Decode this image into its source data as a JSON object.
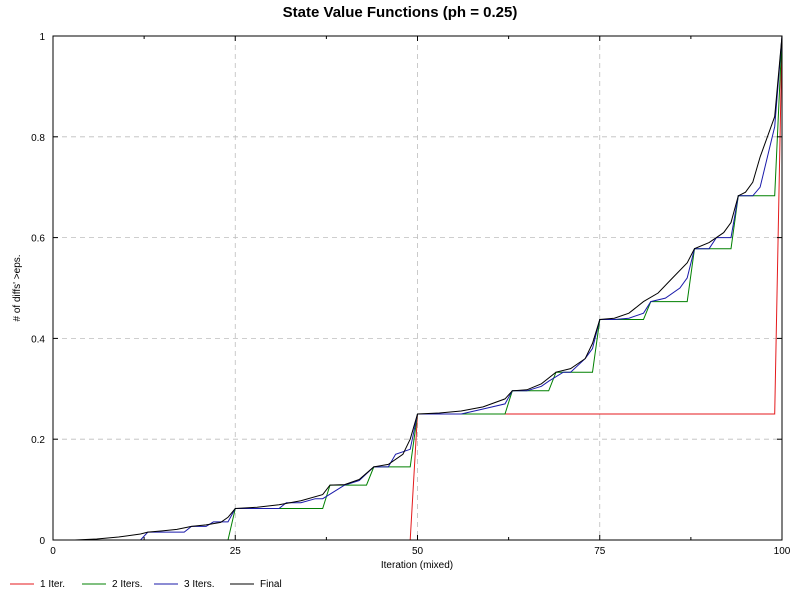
{
  "chart_data": {
    "type": "line",
    "title": "State Value Functions (ph = 0.25)",
    "xlabel": "Iteration (mixed)",
    "ylabel": "# of diffs' >eps.",
    "xlim": [
      0,
      100
    ],
    "ylim": [
      0,
      1
    ],
    "xticks": [
      0,
      25,
      50,
      75,
      100
    ],
    "yticks": [
      0,
      0.2,
      0.4,
      0.6,
      0.8,
      1
    ],
    "ytick_labels": [
      "0",
      "0.2",
      "0.4",
      "0.6",
      "0.8",
      "1"
    ],
    "grid": true,
    "legend_position": "bottom",
    "colors": {
      "s1": "#e41a1c",
      "s2": "#008000",
      "s3": "#1a1aaa",
      "s4": "#000000"
    },
    "series": [
      {
        "name": "1 Iter.",
        "color": "#e41a1c",
        "x": [
          49,
          50,
          99,
          100
        ],
        "y": [
          0,
          0.25,
          0.25,
          1
        ]
      },
      {
        "name": "2 Iters.",
        "color": "#008000",
        "x": [
          24,
          25,
          37,
          38,
          43,
          44,
          49,
          50,
          62,
          63,
          68,
          69,
          74,
          75,
          81,
          82,
          87,
          88,
          93,
          94,
          99,
          100
        ],
        "y": [
          0,
          0.0625,
          0.0625,
          0.109,
          0.109,
          0.145,
          0.145,
          0.25,
          0.25,
          0.296,
          0.296,
          0.333,
          0.333,
          0.4375,
          0.4375,
          0.473,
          0.473,
          0.578,
          0.578,
          0.683,
          0.683,
          1
        ]
      },
      {
        "name": "3 Iters.",
        "color": "#1a1aaa",
        "x": [
          12,
          13,
          15,
          18,
          19,
          21,
          22,
          24,
          25,
          28,
          31,
          32,
          34,
          36,
          37,
          40,
          42,
          44,
          46,
          47,
          49,
          50,
          53,
          56,
          59,
          62,
          63,
          65,
          67,
          68,
          70,
          71,
          73,
          74,
          75,
          77,
          79,
          81,
          82,
          84,
          86,
          87,
          88,
          90,
          91,
          93,
          94,
          96,
          97,
          98,
          99,
          100
        ],
        "y": [
          0,
          0.0156,
          0.0156,
          0.0156,
          0.027,
          0.027,
          0.036,
          0.036,
          0.0625,
          0.0625,
          0.0625,
          0.074,
          0.074,
          0.082,
          0.082,
          0.109,
          0.118,
          0.145,
          0.145,
          0.17,
          0.18,
          0.25,
          0.25,
          0.25,
          0.26,
          0.27,
          0.296,
          0.296,
          0.305,
          0.315,
          0.333,
          0.333,
          0.36,
          0.38,
          0.4375,
          0.4375,
          0.44,
          0.45,
          0.473,
          0.48,
          0.5,
          0.52,
          0.578,
          0.578,
          0.6,
          0.6,
          0.683,
          0.683,
          0.7,
          0.76,
          0.82,
          1
        ]
      },
      {
        "name": "Final",
        "color": "#000000",
        "x": [
          3,
          6,
          9,
          12,
          13,
          15,
          17,
          19,
          21,
          23,
          24,
          25,
          28,
          31,
          34,
          37,
          38,
          40,
          42,
          44,
          46,
          48,
          49,
          50,
          53,
          56,
          59,
          62,
          63,
          65,
          67,
          69,
          71,
          73,
          74,
          75,
          77,
          79,
          81,
          83,
          85,
          87,
          88,
          90,
          92,
          93,
          94,
          95,
          96,
          97,
          98,
          99,
          100
        ],
        "y": [
          0,
          0.002,
          0.006,
          0.012,
          0.0156,
          0.018,
          0.021,
          0.027,
          0.03,
          0.035,
          0.045,
          0.0625,
          0.065,
          0.07,
          0.078,
          0.09,
          0.109,
          0.11,
          0.12,
          0.145,
          0.15,
          0.17,
          0.2,
          0.25,
          0.252,
          0.256,
          0.264,
          0.28,
          0.296,
          0.298,
          0.31,
          0.333,
          0.34,
          0.36,
          0.39,
          0.4375,
          0.44,
          0.45,
          0.473,
          0.49,
          0.52,
          0.55,
          0.578,
          0.59,
          0.61,
          0.63,
          0.683,
          0.69,
          0.71,
          0.76,
          0.8,
          0.84,
          1
        ]
      }
    ]
  }
}
